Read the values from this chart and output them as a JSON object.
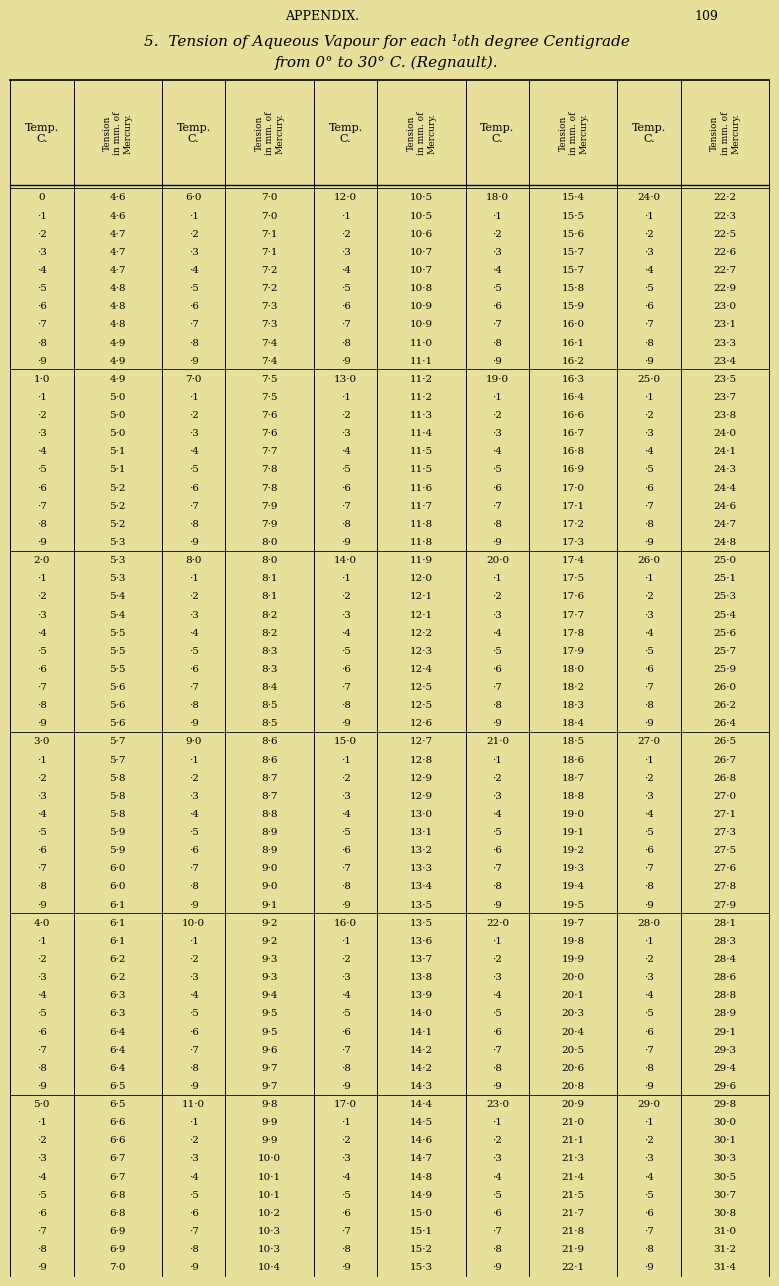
{
  "title_line1": "5.  Tension of Aqueous Vapour for each ¹₀th degree Centigrade",
  "title_line2": "from 0° to 30° C. (Regnault).",
  "page_header": "APPENDIX.",
  "page_number": "109",
  "bg_color": "#e8e09a",
  "rows": [
    [
      "0",
      "4·6",
      "6·0",
      "7·0",
      "12·0",
      "10·5",
      "18·0",
      "15·4",
      "24·0",
      "22·2"
    ],
    [
      "·1",
      "4·6",
      "·1",
      "7·0",
      "·1",
      "10·5",
      "·1",
      "15·5",
      "·1",
      "22·3"
    ],
    [
      "·2",
      "4·7",
      "·2",
      "7·1",
      "·2",
      "10·6",
      "·2",
      "15·6",
      "·2",
      "22·5"
    ],
    [
      "·3",
      "4·7",
      "·3",
      "7·1",
      "·3",
      "10·7",
      "·3",
      "15·7",
      "·3",
      "22·6"
    ],
    [
      "·4",
      "4·7",
      "·4",
      "7·2",
      "·4",
      "10·7",
      "·4",
      "15·7",
      "·4",
      "22·7"
    ],
    [
      "·5",
      "4·8",
      "·5",
      "7·2",
      "·5",
      "10·8",
      "·5",
      "15·8",
      "·5",
      "22·9"
    ],
    [
      "·6",
      "4·8",
      "·6",
      "7·3",
      "·6",
      "10·9",
      "·6",
      "15·9",
      "·6",
      "23·0"
    ],
    [
      "·7",
      "4·8",
      "·7",
      "7·3",
      "·7",
      "10·9",
      "·7",
      "16·0",
      "·7",
      "23·1"
    ],
    [
      "·8",
      "4·9",
      "·8",
      "7·4",
      "·8",
      "11·0",
      "·8",
      "16·1",
      "·8",
      "23·3"
    ],
    [
      "·9",
      "4·9",
      "·9",
      "7·4",
      "·9",
      "11·1",
      "·9",
      "16·2",
      "·9",
      "23·4"
    ],
    [
      "1·0",
      "4·9",
      "7·0",
      "7·5",
      "13·0",
      "11·2",
      "19·0",
      "16·3",
      "25·0",
      "23·5"
    ],
    [
      "·1",
      "5·0",
      "·1",
      "7·5",
      "·1",
      "11·2",
      "·1",
      "16·4",
      "·1",
      "23·7"
    ],
    [
      "·2",
      "5·0",
      "·2",
      "7·6",
      "·2",
      "11·3",
      "·2",
      "16·6",
      "·2",
      "23·8"
    ],
    [
      "·3",
      "5·0",
      "·3",
      "7·6",
      "·3",
      "11·4",
      "·3",
      "16·7",
      "·3",
      "24·0"
    ],
    [
      "·4",
      "5·1",
      "·4",
      "7·7",
      "·4",
      "11·5",
      "·4",
      "16·8",
      "·4",
      "24·1"
    ],
    [
      "·5",
      "5·1",
      "·5",
      "7·8",
      "·5",
      "11·5",
      "·5",
      "16·9",
      "·5",
      "24·3"
    ],
    [
      "·6",
      "5·2",
      "·6",
      "7·8",
      "·6",
      "11·6",
      "·6",
      "17·0",
      "·6",
      "24·4"
    ],
    [
      "·7",
      "5·2",
      "·7",
      "7·9",
      "·7",
      "11·7",
      "·7",
      "17·1",
      "·7",
      "24·6"
    ],
    [
      "·8",
      "5·2",
      "·8",
      "7·9",
      "·8",
      "11·8",
      "·8",
      "17·2",
      "·8",
      "24·7"
    ],
    [
      "·9",
      "5·3",
      "·9",
      "8·0",
      "·9",
      "11·8",
      "·9",
      "17·3",
      "·9",
      "24·8"
    ],
    [
      "2·0",
      "5·3",
      "8·0",
      "8·0",
      "14·0",
      "11·9",
      "20·0",
      "17·4",
      "26·0",
      "25·0"
    ],
    [
      "·1",
      "5·3",
      "·1",
      "8·1",
      "·1",
      "12·0",
      "·1",
      "17·5",
      "·1",
      "25·1"
    ],
    [
      "·2",
      "5·4",
      "·2",
      "8·1",
      "·2",
      "12·1",
      "·2",
      "17·6",
      "·2",
      "25·3"
    ],
    [
      "·3",
      "5·4",
      "·3",
      "8·2",
      "·3",
      "12·1",
      "·3",
      "17·7",
      "·3",
      "25·4"
    ],
    [
      "·4",
      "5·5",
      "·4",
      "8·2",
      "·4",
      "12·2",
      "·4",
      "17·8",
      "·4",
      "25·6"
    ],
    [
      "·5",
      "5·5",
      "·5",
      "8·3",
      "·5",
      "12·3",
      "·5",
      "17·9",
      "·5",
      "25·7"
    ],
    [
      "·6",
      "5·5",
      "·6",
      "8·3",
      "·6",
      "12·4",
      "·6",
      "18·0",
      "·6",
      "25·9"
    ],
    [
      "·7",
      "5·6",
      "·7",
      "8·4",
      "·7",
      "12·5",
      "·7",
      "18·2",
      "·7",
      "26·0"
    ],
    [
      "·8",
      "5·6",
      "·8",
      "8·5",
      "·8",
      "12·5",
      "·8",
      "18·3",
      "·8",
      "26·2"
    ],
    [
      "·9",
      "5·6",
      "·9",
      "8·5",
      "·9",
      "12·6",
      "·9",
      "18·4",
      "·9",
      "26·4"
    ],
    [
      "3·0",
      "5·7",
      "9·0",
      "8·6",
      "15·0",
      "12·7",
      "21·0",
      "18·5",
      "27·0",
      "26·5"
    ],
    [
      "·1",
      "5·7",
      "·1",
      "8·6",
      "·1",
      "12·8",
      "·1",
      "18·6",
      "·1",
      "26·7"
    ],
    [
      "·2",
      "5·8",
      "·2",
      "8·7",
      "·2",
      "12·9",
      "·2",
      "18·7",
      "·2",
      "26·8"
    ],
    [
      "·3",
      "5·8",
      "·3",
      "8·7",
      "·3",
      "12·9",
      "·3",
      "18·8",
      "·3",
      "27·0"
    ],
    [
      "·4",
      "5·8",
      "·4",
      "8·8",
      "·4",
      "13·0",
      "·4",
      "19·0",
      "·4",
      "27·1"
    ],
    [
      "·5",
      "5·9",
      "·5",
      "8·9",
      "·5",
      "13·1",
      "·5",
      "19·1",
      "·5",
      "27·3"
    ],
    [
      "·6",
      "5·9",
      "·6",
      "8·9",
      "·6",
      "13·2",
      "·6",
      "19·2",
      "·6",
      "27·5"
    ],
    [
      "·7",
      "6·0",
      "·7",
      "9·0",
      "·7",
      "13·3",
      "·7",
      "19·3",
      "·7",
      "27·6"
    ],
    [
      "·8",
      "6·0",
      "·8",
      "9·0",
      "·8",
      "13·4",
      "·8",
      "19·4",
      "·8",
      "27·8"
    ],
    [
      "·9",
      "6·1",
      "·9",
      "9·1",
      "·9",
      "13·5",
      "·9",
      "19·5",
      "·9",
      "27·9"
    ],
    [
      "4·0",
      "6·1",
      "10·0",
      "9·2",
      "16·0",
      "13·5",
      "22·0",
      "19·7",
      "28·0",
      "28·1"
    ],
    [
      "·1",
      "6·1",
      "·1",
      "9·2",
      "·1",
      "13·6",
      "·1",
      "19·8",
      "·1",
      "28·3"
    ],
    [
      "·2",
      "6·2",
      "·2",
      "9·3",
      "·2",
      "13·7",
      "·2",
      "19·9",
      "·2",
      "28·4"
    ],
    [
      "·3",
      "6·2",
      "·3",
      "9·3",
      "·3",
      "13·8",
      "·3",
      "20·0",
      "·3",
      "28·6"
    ],
    [
      "·4",
      "6·3",
      "·4",
      "9·4",
      "·4",
      "13·9",
      "·4",
      "20·1",
      "·4",
      "28·8"
    ],
    [
      "·5",
      "6·3",
      "·5",
      "9·5",
      "·5",
      "14·0",
      "·5",
      "20·3",
      "·5",
      "28·9"
    ],
    [
      "·6",
      "6·4",
      "·6",
      "9·5",
      "·6",
      "14·1",
      "·6",
      "20·4",
      "·6",
      "29·1"
    ],
    [
      "·7",
      "6·4",
      "·7",
      "9·6",
      "·7",
      "14·2",
      "·7",
      "20·5",
      "·7",
      "29·3"
    ],
    [
      "·8",
      "6·4",
      "·8",
      "9·7",
      "·8",
      "14·2",
      "·8",
      "20·6",
      "·8",
      "29·4"
    ],
    [
      "·9",
      "6·5",
      "·9",
      "9·7",
      "·9",
      "14·3",
      "·9",
      "20·8",
      "·9",
      "29·6"
    ],
    [
      "5·0",
      "6·5",
      "11·0",
      "9·8",
      "17·0",
      "14·4",
      "23·0",
      "20·9",
      "29·0",
      "29·8"
    ],
    [
      "·1",
      "6·6",
      "·1",
      "9·9",
      "·1",
      "14·5",
      "·1",
      "21·0",
      "·1",
      "30·0"
    ],
    [
      "·2",
      "6·6",
      "·2",
      "9·9",
      "·2",
      "14·6",
      "·2",
      "21·1",
      "·2",
      "30·1"
    ],
    [
      "·3",
      "6·7",
      "·3",
      "10·0",
      "·3",
      "14·7",
      "·3",
      "21·3",
      "·3",
      "30·3"
    ],
    [
      "·4",
      "6·7",
      "·4",
      "10·1",
      "·4",
      "14·8",
      "·4",
      "21·4",
      "·4",
      "30·5"
    ],
    [
      "·5",
      "6·8",
      "·5",
      "10·1",
      "·5",
      "14·9",
      "·5",
      "21·5",
      "·5",
      "30·7"
    ],
    [
      "·6",
      "6·8",
      "·6",
      "10·2",
      "·6",
      "15·0",
      "·6",
      "21·7",
      "·6",
      "30·8"
    ],
    [
      "·7",
      "6·9",
      "·7",
      "10·3",
      "·7",
      "15·1",
      "·7",
      "21·8",
      "·7",
      "31·0"
    ],
    [
      "·8",
      "6·9",
      "·8",
      "10·3",
      "·8",
      "15·2",
      "·8",
      "21·9",
      "·8",
      "31·2"
    ],
    [
      "·9",
      "7·0",
      "·9",
      "10·4",
      "·9",
      "15·3",
      "·9",
      "22·1",
      "·9",
      "31·4"
    ]
  ]
}
